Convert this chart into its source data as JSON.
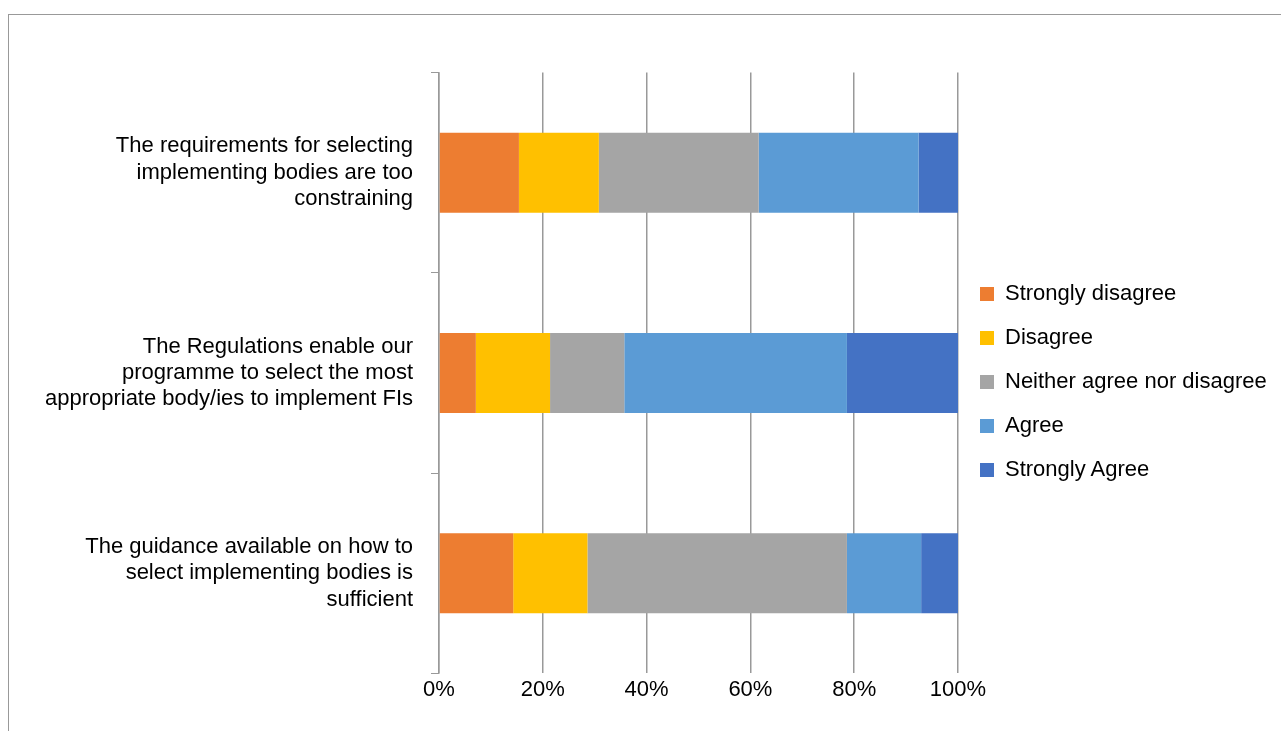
{
  "chart_data": {
    "type": "bar",
    "orientation": "horizontal",
    "stacked": true,
    "categories": [
      "The requirements for selecting implementing bodies are too constraining",
      "The Regulations enable our programme to select the most appropriate body/ies to implement FIs",
      "The guidance available on how to select implementing bodies is sufficient"
    ],
    "series": [
      {
        "name": "Strongly disagree",
        "color": "#ed7d31",
        "values": [
          15.4,
          7.1,
          14.3
        ]
      },
      {
        "name": "Disagree",
        "color": "#ffc000",
        "values": [
          15.4,
          14.3,
          14.3
        ]
      },
      {
        "name": "Neither agree nor disagree",
        "color": "#a5a5a5",
        "values": [
          30.8,
          14.3,
          50
        ]
      },
      {
        "name": "Agree",
        "color": "#5b9bd5",
        "values": [
          30.8,
          42.9,
          14.3
        ]
      },
      {
        "name": "Strongly Agree",
        "color": "#4472c4",
        "values": [
          7.6,
          21.4,
          7.1
        ]
      }
    ],
    "xlim": [
      0,
      100
    ],
    "xticks": [
      {
        "value": 0,
        "label": "0%"
      },
      {
        "value": 20,
        "label": "20%"
      },
      {
        "value": 40,
        "label": "40%"
      },
      {
        "value": 60,
        "label": "60%"
      },
      {
        "value": 80,
        "label": "80%"
      },
      {
        "value": 100,
        "label": "100%"
      }
    ],
    "grid": "x",
    "legend": "right"
  }
}
